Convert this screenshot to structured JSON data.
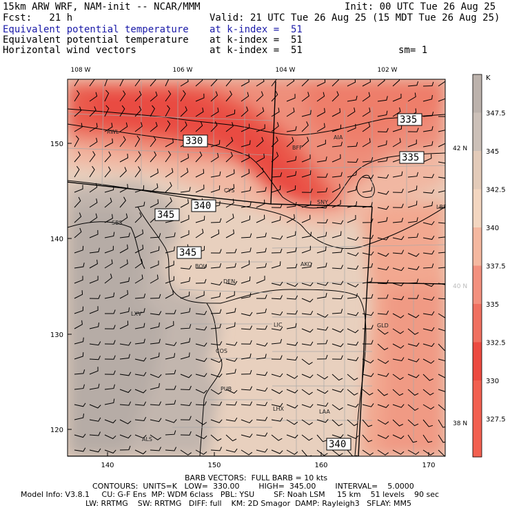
{
  "header": {
    "model_line": "15km ARW WRF, NAM-init -- NCAR/MMM",
    "init": "Init: 00 UTC Tue 26 Aug 25",
    "fcst": "Fcst:   21 h",
    "valid": "Valid: 21 UTC Tue 26 Aug 25 (15 MDT Tue 26 Aug 25)",
    "fields": [
      {
        "name": "Equivalent potential temperature",
        "level": "at k-index =  51",
        "color": "#1a1aa8"
      },
      {
        "name": "Equivalent potential temperature",
        "level": "at k-index =  51",
        "color": "#000000"
      },
      {
        "name": "Horizontal wind vectors",
        "level": "at k-index =  51",
        "color": "#000000"
      }
    ],
    "smoothing": "sm= 1"
  },
  "axes": {
    "top_labels": [
      "108 W",
      "106 W",
      "104 W",
      "102 W"
    ],
    "right_labels": [
      "42 N",
      "40 N",
      "38 N"
    ],
    "left_labels": [
      "150",
      "140",
      "130",
      "120"
    ],
    "bottom_labels": [
      "140",
      "150",
      "160",
      "170"
    ]
  },
  "colorbar": {
    "unit": "K",
    "labels": [
      "347.5",
      "345",
      "342.5",
      "340",
      "337.5",
      "335",
      "332.5",
      "330",
      "327.5"
    ],
    "colors": [
      "#bcb2ac",
      "#ccc0b8",
      "#e3cbb9",
      "#f3d6c0",
      "#f5b8a0",
      "#f3907e",
      "#f07060",
      "#ec4a40",
      "#f26050"
    ]
  },
  "cities": [
    "RWL",
    "BFF",
    "AIA",
    "CYS",
    "SNY",
    "SBS",
    "LBF",
    "BOU",
    "AKO",
    "DEN",
    "LXV",
    "LIC",
    "GLD",
    "COS",
    "PUB",
    "LHX",
    "LAA",
    "ALS"
  ],
  "contour_labels": [
    "330",
    "335",
    "335",
    "340",
    "345",
    "345",
    "340"
  ],
  "footer": {
    "barb": "BARB VECTORS:  FULL BARB = 10 kts",
    "contours": "CONTOURS:  UNITS=K   LOW=  330.00        HIGH=  345.00        INTERVAL=    5.0000",
    "model_info": "Model Info: V3.8.1     CU: G-F Ens  MP: WDM 6class   PBL: YSU        SF: Noah LSM     15 km    51 levels    90 sec",
    "physics": "LW: RRTMG    SW: RRTMG   DIFF: full    KM: 2D Smagor  DAMP: Rayleigh3   SFLAY: MM5"
  }
}
